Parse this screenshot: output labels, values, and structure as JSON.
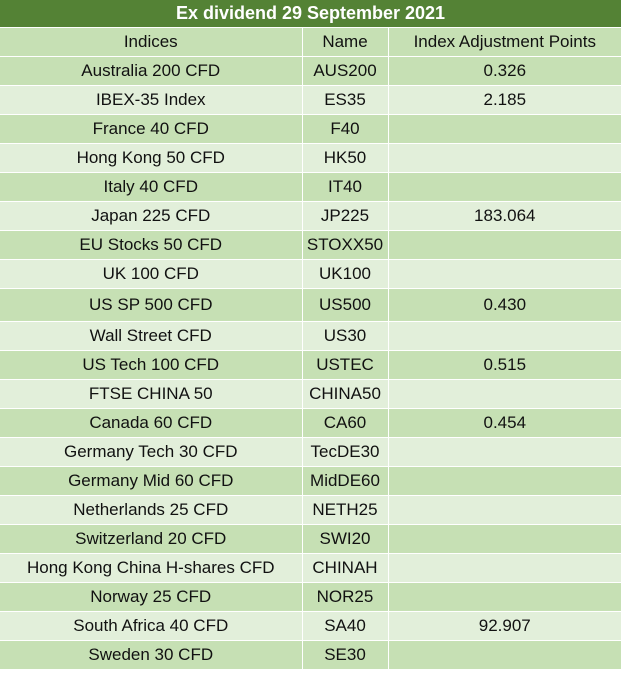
{
  "title": "Ex dividend 29 September 2021",
  "columns": [
    "Indices",
    "Name",
    "Index Adjustment Points"
  ],
  "rows": [
    {
      "index": "Australia 200 CFD",
      "name": "AUS200",
      "points": "0.326"
    },
    {
      "index": "IBEX-35 Index",
      "name": "ES35",
      "points": "2.185"
    },
    {
      "index": "France 40 CFD",
      "name": "F40",
      "points": ""
    },
    {
      "index": "Hong Kong 50 CFD",
      "name": "HK50",
      "points": ""
    },
    {
      "index": "Italy 40 CFD",
      "name": "IT40",
      "points": ""
    },
    {
      "index": "Japan 225 CFD",
      "name": "JP225",
      "points": "183.064"
    },
    {
      "index": "EU Stocks 50 CFD",
      "name": "STOXX50",
      "points": ""
    },
    {
      "index": "UK 100 CFD",
      "name": "UK100",
      "points": ""
    },
    {
      "index": "US SP 500 CFD",
      "name": "US500",
      "points": "0.430"
    },
    {
      "index": "Wall Street CFD",
      "name": "US30",
      "points": ""
    },
    {
      "index": "US Tech 100 CFD",
      "name": "USTEC",
      "points": "0.515"
    },
    {
      "index": "FTSE CHINA 50",
      "name": "CHINA50",
      "points": ""
    },
    {
      "index": "Canada 60 CFD",
      "name": "CA60",
      "points": "0.454"
    },
    {
      "index": "Germany Tech 30 CFD",
      "name": "TecDE30",
      "points": ""
    },
    {
      "index": "Germany Mid 60 CFD",
      "name": "MidDE60",
      "points": ""
    },
    {
      "index": "Netherlands 25 CFD",
      "name": "NETH25",
      "points": ""
    },
    {
      "index": "Switzerland 20 CFD",
      "name": "SWI20",
      "points": ""
    },
    {
      "index": "Hong Kong China H-shares CFD",
      "name": "CHINAH",
      "points": ""
    },
    {
      "index": "Norway 25 CFD",
      "name": "NOR25",
      "points": ""
    },
    {
      "index": "South Africa 40 CFD",
      "name": "SA40",
      "points": "92.907"
    },
    {
      "index": "Sweden 30 CFD",
      "name": "SE30",
      "points": ""
    }
  ],
  "colors": {
    "title_bg": "#548235",
    "title_text": "#ffffff",
    "row_dark": "#c6e0b4",
    "row_light": "#e2efda"
  }
}
